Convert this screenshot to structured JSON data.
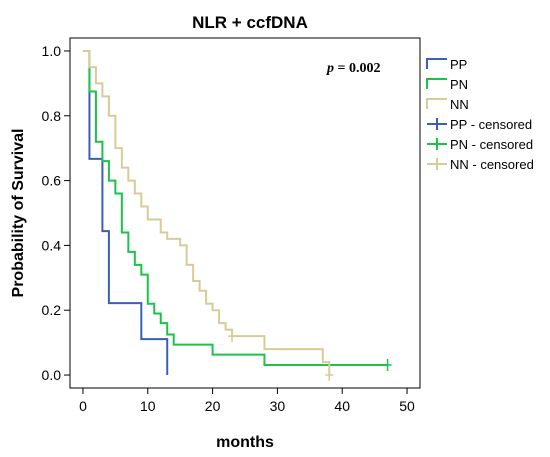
{
  "chart_data": {
    "type": "line",
    "title": "NLR + ccfDNA",
    "xlabel": "months",
    "ylabel": "Probability of Survival",
    "xlim": [
      -2,
      52
    ],
    "ylim": [
      -0.04,
      1.04
    ],
    "xticks": [
      0,
      10,
      20,
      30,
      40,
      50
    ],
    "yticks": [
      0.0,
      0.2,
      0.4,
      0.6,
      0.8,
      1.0
    ],
    "x_tick_labels": [
      "0",
      "10",
      "20",
      "30",
      "40",
      "50"
    ],
    "y_tick_labels": [
      "0.0",
      "0.2",
      "0.4",
      "0.6",
      "0.8",
      "1.0"
    ],
    "grid": false,
    "legend_position": "right",
    "annotation": {
      "p_label": "p",
      "p_value": " = 0.002"
    },
    "series": [
      {
        "name": "PP",
        "color": "#3a5fb5",
        "steps": [
          [
            0,
            1.0
          ],
          [
            1,
            0.667
          ],
          [
            3,
            0.444
          ],
          [
            4,
            0.222
          ],
          [
            9,
            0.111
          ],
          [
            13,
            0.0
          ]
        ],
        "censored": []
      },
      {
        "name": "PN",
        "color": "#1dc24b",
        "steps": [
          [
            0,
            1.0
          ],
          [
            1,
            0.875
          ],
          [
            2,
            0.72
          ],
          [
            3,
            0.66
          ],
          [
            4,
            0.6
          ],
          [
            5,
            0.56
          ],
          [
            6,
            0.44
          ],
          [
            7,
            0.38
          ],
          [
            8,
            0.34
          ],
          [
            9,
            0.31
          ],
          [
            10,
            0.22
          ],
          [
            11,
            0.19
          ],
          [
            12,
            0.16
          ],
          [
            13,
            0.125
          ],
          [
            14,
            0.094
          ],
          [
            20,
            0.063
          ],
          [
            28,
            0.031
          ],
          [
            47,
            0.031
          ]
        ],
        "censored": [
          47
        ]
      },
      {
        "name": "NN",
        "color": "#d9cb97",
        "steps": [
          [
            0,
            1.0
          ],
          [
            1,
            0.95
          ],
          [
            2,
            0.9
          ],
          [
            3,
            0.86
          ],
          [
            4,
            0.8
          ],
          [
            5,
            0.7
          ],
          [
            6,
            0.64
          ],
          [
            7,
            0.6
          ],
          [
            8,
            0.56
          ],
          [
            9,
            0.52
          ],
          [
            10,
            0.48
          ],
          [
            12,
            0.44
          ],
          [
            13,
            0.42
          ],
          [
            15,
            0.4
          ],
          [
            16,
            0.34
          ],
          [
            17,
            0.29
          ],
          [
            18,
            0.26
          ],
          [
            19,
            0.22
          ],
          [
            20,
            0.2
          ],
          [
            21,
            0.16
          ],
          [
            22,
            0.14
          ],
          [
            23,
            0.12
          ],
          [
            28,
            0.08
          ],
          [
            37,
            0.04
          ],
          [
            38,
            0.0
          ]
        ],
        "censored": [
          23,
          38
        ]
      }
    ],
    "legend": [
      {
        "label": "PP",
        "kind": "line",
        "series": 0
      },
      {
        "label": "PN",
        "kind": "line",
        "series": 1
      },
      {
        "label": "NN",
        "kind": "line",
        "series": 2
      },
      {
        "label": "PP - censored",
        "kind": "censored",
        "series": 0
      },
      {
        "label": "PN - censored",
        "kind": "censored",
        "series": 1
      },
      {
        "label": "NN - censored",
        "kind": "censored",
        "series": 2
      }
    ]
  }
}
